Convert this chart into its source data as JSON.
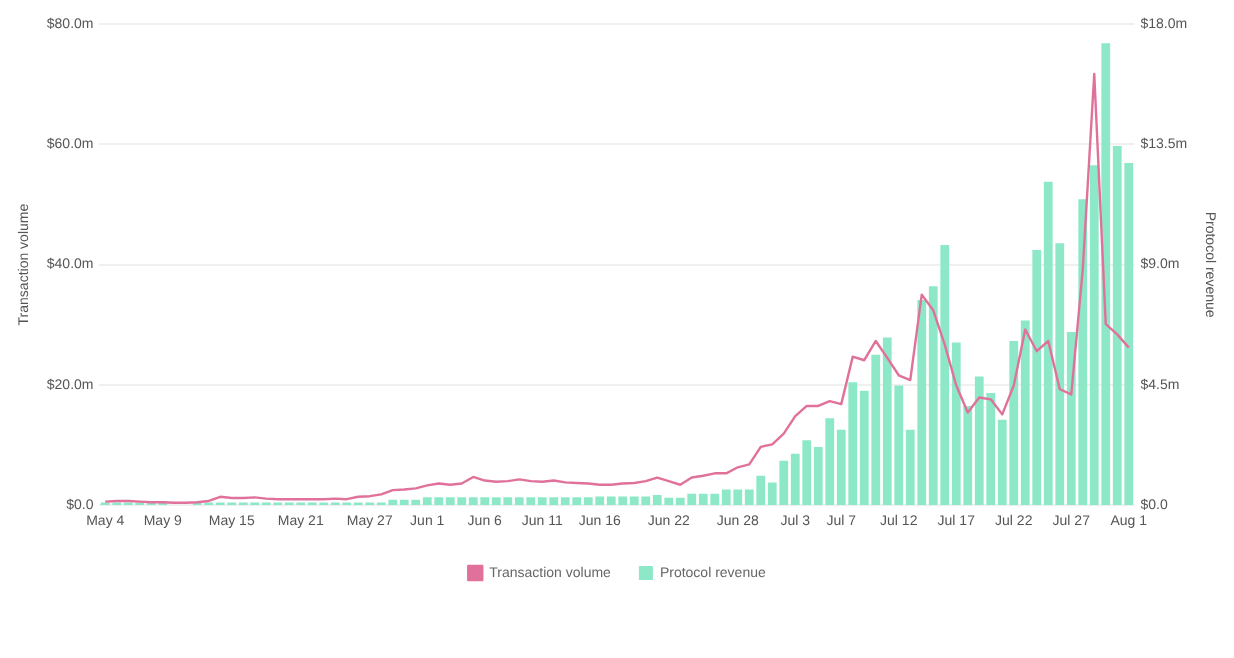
{
  "chart_data": {
    "type": "bar",
    "ylabel": "Transaction volume",
    "y2label": "Protocol revenue",
    "categories": [
      "May 4",
      null,
      null,
      null,
      null,
      "May 9",
      null,
      null,
      null,
      null,
      null,
      "May 15",
      null,
      null,
      null,
      null,
      null,
      "May 21",
      null,
      null,
      null,
      null,
      null,
      "May 27",
      null,
      null,
      null,
      null,
      "Jun 1",
      null,
      null,
      null,
      null,
      "Jun 6",
      null,
      null,
      null,
      null,
      "Jun 11",
      null,
      null,
      null,
      null,
      "Jun 16",
      null,
      null,
      null,
      null,
      null,
      "Jun 22",
      null,
      null,
      null,
      null,
      null,
      "Jun 28",
      null,
      null,
      null,
      null,
      "Jul 3",
      null,
      null,
      null,
      "Jul 7",
      null,
      null,
      null,
      null,
      "Jul 12",
      null,
      null,
      null,
      null,
      "Jul 17",
      null,
      null,
      null,
      null,
      "Jul 22",
      null,
      null,
      null,
      null,
      "Jul 27",
      null,
      null,
      null,
      null,
      "Aug 1"
    ],
    "series": [
      {
        "name": "Transaction volume",
        "type": "line",
        "axis": "y",
        "color": "#e0719a",
        "values": [
          0.6,
          0.7,
          0.7,
          0.6,
          0.5,
          0.5,
          0.4,
          0.4,
          0.5,
          0.7,
          1.4,
          1.2,
          1.2,
          1.3,
          1.1,
          1.0,
          1.0,
          1.0,
          1.0,
          1.0,
          1.1,
          1.0,
          1.4,
          1.5,
          1.8,
          2.5,
          2.6,
          2.8,
          3.3,
          3.6,
          3.4,
          3.6,
          4.7,
          4.1,
          3.9,
          4.0,
          4.3,
          4.0,
          3.9,
          4.1,
          3.8,
          3.7,
          3.6,
          3.4,
          3.4,
          3.6,
          3.7,
          4.0,
          4.6,
          4.0,
          3.4,
          4.6,
          4.9,
          5.3,
          5.3,
          6.3,
          6.8,
          9.7,
          10.1,
          11.9,
          14.8,
          16.5,
          16.5,
          17.3,
          16.8,
          24.7,
          24.1,
          27.3,
          24.5,
          21.6,
          20.8,
          35.0,
          32.4,
          26.7,
          19.9,
          15.4,
          17.9,
          17.6,
          15.1,
          19.9,
          29.2,
          25.6,
          27.3,
          19.3,
          18.4,
          39.2,
          71.7,
          30.1,
          28.4,
          26.2
        ]
      },
      {
        "name": "Protocol revenue",
        "axis": "y2",
        "color": "#8de8c8",
        "values": [
          0.1,
          0.1,
          0.1,
          0.1,
          0.1,
          0.1,
          null,
          null,
          0.1,
          0.1,
          0.1,
          0.1,
          0.1,
          0.1,
          0.1,
          0.1,
          0.1,
          0.1,
          0.1,
          0.1,
          0.1,
          0.1,
          0.1,
          0.1,
          0.1,
          0.2,
          0.2,
          0.2,
          0.3,
          0.3,
          0.3,
          0.3,
          0.3,
          0.3,
          0.3,
          0.3,
          0.3,
          0.3,
          0.3,
          0.3,
          0.3,
          0.3,
          0.3,
          0.33,
          0.33,
          0.33,
          0.33,
          0.33,
          0.38,
          0.28,
          0.28,
          0.43,
          0.43,
          0.43,
          0.59,
          0.59,
          0.59,
          1.1,
          0.85,
          1.66,
          1.92,
          2.43,
          2.18,
          3.25,
          2.82,
          4.6,
          4.28,
          5.63,
          6.27,
          4.48,
          2.82,
          7.68,
          8.19,
          9.73,
          6.09,
          3.71,
          4.81,
          4.2,
          3.2,
          6.14,
          6.91,
          9.55,
          12.1,
          9.8,
          6.48,
          11.44,
          12.72,
          17.28,
          13.44,
          12.8
        ]
      }
    ],
    "ylim": [
      0,
      80
    ],
    "yticks": [
      {
        "value": 0,
        "label": "$0.0"
      },
      {
        "value": 20,
        "label": "$20.0m"
      },
      {
        "value": 40,
        "label": "$40.0m"
      },
      {
        "value": 60,
        "label": "$60.0m"
      },
      {
        "value": 80,
        "label": "$80.0m"
      }
    ],
    "y2lim": [
      0,
      18
    ],
    "y2ticks": [
      {
        "value": 0,
        "label": "$0.0"
      },
      {
        "value": 4.5,
        "label": "$4.5m"
      },
      {
        "value": 9,
        "label": "$9.0m"
      },
      {
        "value": 13.5,
        "label": "$13.5m"
      },
      {
        "value": 18,
        "label": "$18.0m"
      }
    ],
    "grid": "y",
    "legend": "bottom",
    "marker": "none",
    "line_style": "solid"
  }
}
